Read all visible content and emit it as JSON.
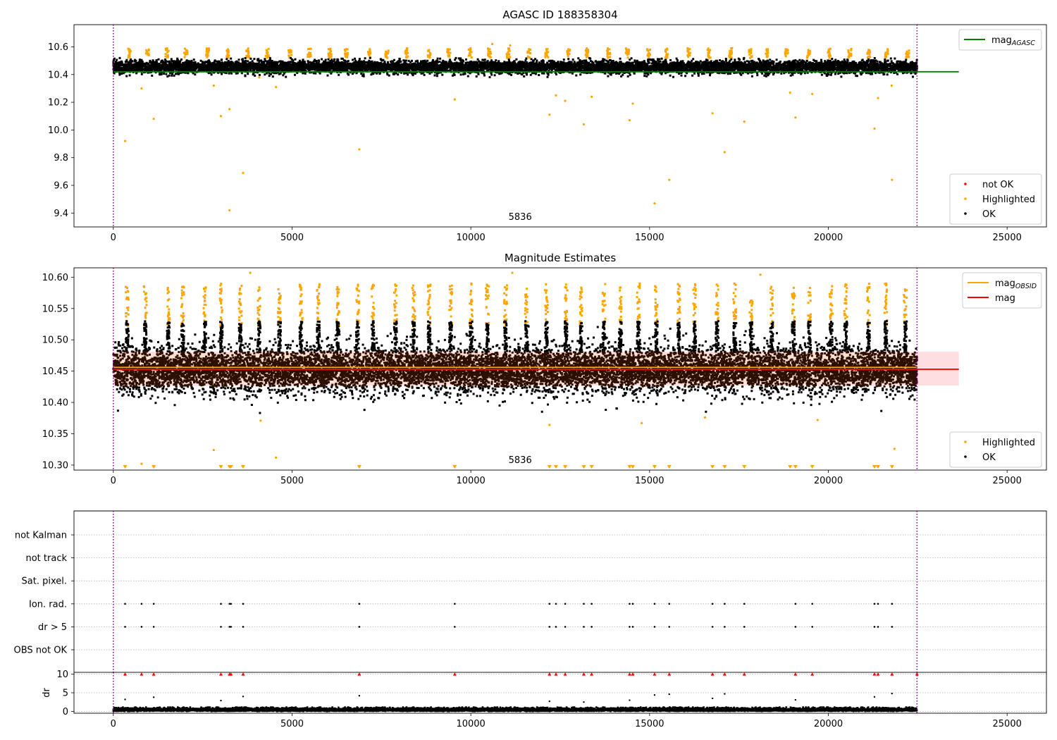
{
  "chart_data": [
    {
      "type": "scatter",
      "title": "AGASC ID 188358304",
      "xlim": [
        -1100,
        26100
      ],
      "ylim": [
        9.3,
        10.76
      ],
      "x_ticks": [
        0,
        5000,
        10000,
        15000,
        20000,
        25000
      ],
      "y_ticks": [
        9.4,
        9.6,
        9.8,
        10.0,
        10.2,
        10.4,
        10.6
      ],
      "y_decimals": 1,
      "n_points": 22480,
      "obsid_label": "5836",
      "obsid_label_x": 11380,
      "boundaries_x": [
        0,
        22480
      ],
      "ok_band": {
        "center": 10.455,
        "halfwidth": 0.045
      },
      "reference_line": {
        "name": "mag",
        "sub": "AGASC",
        "y": 10.42,
        "x_range": [
          0,
          23650
        ],
        "color": "#008000"
      },
      "highlighted_outliers": [
        {
          "x": 330,
          "y": 9.92
        },
        {
          "x": 790,
          "y": 10.3
        },
        {
          "x": 1130,
          "y": 10.08
        },
        {
          "x": 2810,
          "y": 10.32
        },
        {
          "x": 3010,
          "y": 10.1
        },
        {
          "x": 3250,
          "y": 10.15
        },
        {
          "x": 3250,
          "y": 9.42
        },
        {
          "x": 3630,
          "y": 9.69
        },
        {
          "x": 4080,
          "y": 10.38
        },
        {
          "x": 4550,
          "y": 10.31
        },
        {
          "x": 6880,
          "y": 9.86
        },
        {
          "x": 9550,
          "y": 10.22
        },
        {
          "x": 12200,
          "y": 10.11
        },
        {
          "x": 12380,
          "y": 10.25
        },
        {
          "x": 12640,
          "y": 10.21
        },
        {
          "x": 13160,
          "y": 10.04
        },
        {
          "x": 13380,
          "y": 10.24
        },
        {
          "x": 14440,
          "y": 10.07
        },
        {
          "x": 14530,
          "y": 10.19
        },
        {
          "x": 15140,
          "y": 9.47
        },
        {
          "x": 15550,
          "y": 9.64
        },
        {
          "x": 16760,
          "y": 10.12
        },
        {
          "x": 17100,
          "y": 9.84
        },
        {
          "x": 17650,
          "y": 10.06
        },
        {
          "x": 18930,
          "y": 10.27
        },
        {
          "x": 19080,
          "y": 10.09
        },
        {
          "x": 19550,
          "y": 10.26
        },
        {
          "x": 21290,
          "y": 10.01
        },
        {
          "x": 21390,
          "y": 10.23
        },
        {
          "x": 21770,
          "y": 10.32
        },
        {
          "x": 21780,
          "y": 9.64
        },
        {
          "x": 10600,
          "y": 10.62
        },
        {
          "x": 11100,
          "y": 10.61
        }
      ],
      "legends": [
        {
          "placement": "top-right",
          "entries": [
            {
              "type": "line",
              "color": "#008000",
              "label": "mag",
              "sub": "AGASC"
            }
          ]
        },
        {
          "placement": "bottom-right",
          "entries": [
            {
              "type": "dot",
              "color": "#ff0000",
              "label": "not OK"
            },
            {
              "type": "dot",
              "color": "#ffa500",
              "label": "Highlighted"
            },
            {
              "type": "dot",
              "color": "#000000",
              "label": "OK"
            }
          ]
        }
      ]
    },
    {
      "type": "scatter",
      "title": "Magnitude Estimates",
      "xlim": [
        -1100,
        26100
      ],
      "ylim": [
        10.292,
        10.615
      ],
      "x_ticks": [
        0,
        5000,
        10000,
        15000,
        20000,
        25000
      ],
      "y_ticks": [
        10.3,
        10.35,
        10.4,
        10.45,
        10.5,
        10.55,
        10.6
      ],
      "y_decimals": 2,
      "n_points": 22480,
      "obsid_label": "5836",
      "obsid_label_x": 11380,
      "boundaries_x": [
        0,
        22480
      ],
      "ok_band": {
        "center": 10.455,
        "halfwidth": 0.045
      },
      "mag_band": {
        "low": 10.427,
        "high": 10.481,
        "x_range": [
          0,
          23650
        ],
        "color": "#ffb6bb"
      },
      "obsid_band": {
        "low": 10.432,
        "high": 10.478,
        "x_range": [
          0,
          22480
        ],
        "color": "#ffe0c8"
      },
      "reference_lines": [
        {
          "name": "mag",
          "sub": "OBSID",
          "y": 10.456,
          "x_range": [
            0,
            22480
          ],
          "color": "#ffa500"
        },
        {
          "name": "mag",
          "y": 10.453,
          "x_range": [
            0,
            23650
          ],
          "color": "#ff0000"
        }
      ],
      "highlighted_outliers": [
        {
          "x": 2810,
          "y": 10.324
        },
        {
          "x": 4550,
          "y": 10.312
        },
        {
          "x": 790,
          "y": 10.302
        },
        {
          "x": 4120,
          "y": 10.371
        },
        {
          "x": 12200,
          "y": 10.364
        },
        {
          "x": 14780,
          "y": 10.367
        },
        {
          "x": 16550,
          "y": 10.376
        },
        {
          "x": 19700,
          "y": 10.372
        },
        {
          "x": 21850,
          "y": 10.326
        },
        {
          "x": 3830,
          "y": 10.607
        },
        {
          "x": 11160,
          "y": 10.607
        },
        {
          "x": 18100,
          "y": 10.604
        }
      ],
      "clipped_markers_x": [
        330,
        1130,
        3010,
        3250,
        3290,
        3630,
        6880,
        9550,
        12200,
        12380,
        12640,
        13160,
        13380,
        14440,
        14530,
        15140,
        15550,
        16760,
        17100,
        17650,
        18930,
        19080,
        19550,
        21290,
        21390,
        21780
      ],
      "legends": [
        {
          "placement": "top-right",
          "entries": [
            {
              "type": "line",
              "color": "#ffa500",
              "label": "mag",
              "sub": "OBSID"
            },
            {
              "type": "line",
              "color": "#ff0000",
              "label": "mag"
            }
          ]
        },
        {
          "placement": "bottom-right",
          "entries": [
            {
              "type": "dot",
              "color": "#ffa500",
              "label": "Highlighted"
            },
            {
              "type": "dot",
              "color": "#000000",
              "label": "OK"
            }
          ]
        }
      ]
    },
    {
      "type": "scatter",
      "xlim": [
        -1100,
        26100
      ],
      "boundaries_x": [
        0,
        22480
      ],
      "flag_rows": [
        "not Kalman",
        "not track",
        "Sat. pixel.",
        "Ion. rad.",
        "dr > 5",
        "OBS not OK"
      ],
      "flag_points_x": [
        330,
        790,
        1130,
        3010,
        3250,
        3290,
        3630,
        6880,
        9550,
        12200,
        12380,
        12640,
        13160,
        13380,
        14440,
        14530,
        15140,
        15550,
        16760,
        17100,
        17650,
        19080,
        19550,
        21290,
        21390,
        21780
      ],
      "flagged_rows": [
        "Ion. rad.",
        "dr > 5"
      ]
    },
    {
      "type": "scatter",
      "ylabel": "dr",
      "xlim": [
        -1100,
        26100
      ],
      "ylim": [
        -0.5,
        10.5
      ],
      "x_ticks": [
        0,
        5000,
        10000,
        15000,
        20000,
        25000
      ],
      "y_ticks": [
        0,
        5,
        10
      ],
      "boundaries_x": [
        0,
        22480
      ],
      "n_points": 22480,
      "dr_typical_max": 1.1,
      "clip_value": 10,
      "clipped_x": [
        330,
        790,
        1130,
        3010,
        3250,
        3290,
        3630,
        6880,
        9550,
        12200,
        12380,
        12640,
        13160,
        13380,
        14440,
        14530,
        15140,
        15550,
        16760,
        17100,
        17650,
        19080,
        19550,
        21290,
        21390,
        21780,
        22480
      ],
      "mid_points": [
        {
          "x": 330,
          "y": 3.2
        },
        {
          "x": 1130,
          "y": 3.8
        },
        {
          "x": 3010,
          "y": 2.9
        },
        {
          "x": 3630,
          "y": 4.0
        },
        {
          "x": 6880,
          "y": 4.2
        },
        {
          "x": 12200,
          "y": 2.7
        },
        {
          "x": 13160,
          "y": 2.5
        },
        {
          "x": 14440,
          "y": 3.0
        },
        {
          "x": 15140,
          "y": 4.4
        },
        {
          "x": 15550,
          "y": 4.6
        },
        {
          "x": 16760,
          "y": 3.5
        },
        {
          "x": 17100,
          "y": 4.7
        },
        {
          "x": 19080,
          "y": 3.1
        },
        {
          "x": 21290,
          "y": 3.9
        },
        {
          "x": 21780,
          "y": 4.8
        }
      ]
    }
  ]
}
